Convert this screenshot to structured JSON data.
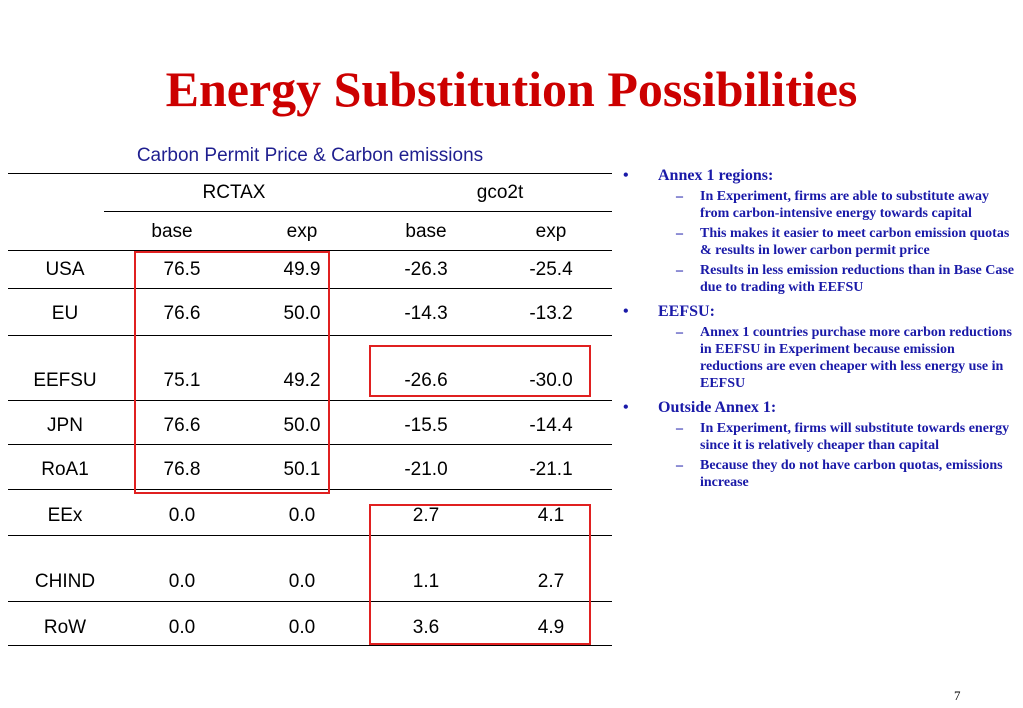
{
  "title": "Energy Substitution Possibilities",
  "table": {
    "caption": "Carbon Permit Price & Carbon emissions",
    "group_headers": [
      "RCTAX",
      "gco2t"
    ],
    "sub_headers": [
      "base",
      "exp",
      "base",
      "exp"
    ],
    "rows": [
      {
        "region": "USA",
        "values": [
          "76.5",
          "49.9",
          "-26.3",
          "-25.4"
        ]
      },
      {
        "region": "EU",
        "values": [
          "76.6",
          "50.0",
          "-14.3",
          "-13.2"
        ]
      },
      {
        "region": "EEFSU",
        "values": [
          "75.1",
          "49.2",
          "-26.6",
          "-30.0"
        ]
      },
      {
        "region": "JPN",
        "values": [
          "76.6",
          "50.0",
          "-15.5",
          "-14.4"
        ]
      },
      {
        "region": "RoA1",
        "values": [
          "76.8",
          "50.1",
          "-21.0",
          "-21.1"
        ]
      },
      {
        "region": "EEx",
        "values": [
          "0.0",
          "0.0",
          "2.7",
          "4.1"
        ]
      },
      {
        "region": "CHIND",
        "values": [
          "0.0",
          "0.0",
          "1.1",
          "2.7"
        ]
      },
      {
        "region": "RoW",
        "values": [
          "0.0",
          "0.0",
          "3.6",
          "4.9"
        ]
      }
    ],
    "highlight_color": "#e02020"
  },
  "bullets": [
    {
      "text": "Annex 1 regions:",
      "sub": [
        "In Experiment, firms are able to substitute away from carbon-intensive energy towards capital",
        "This makes it easier to meet carbon emission quotas & results in lower carbon permit price",
        "Results in less emission reductions than in Base Case due to trading with EEFSU"
      ]
    },
    {
      "text": "EEFSU:",
      "sub": [
        "Annex 1 countries purchase more carbon reductions in EEFSU in Experiment because emission reductions are even cheaper with less energy use in EEFSU"
      ]
    },
    {
      "text": "Outside Annex 1:",
      "sub": [
        "In Experiment, firms will substitute towards energy since it is relatively cheaper than capital",
        "Because they do not have carbon quotas, emissions increase"
      ]
    }
  ],
  "bullet_symbol": "•",
  "dash_symbol": "–",
  "page_number": "7",
  "colors": {
    "title": "#cc0000",
    "caption": "#1f1f8f",
    "bullet_text": "#1a1aa8"
  }
}
